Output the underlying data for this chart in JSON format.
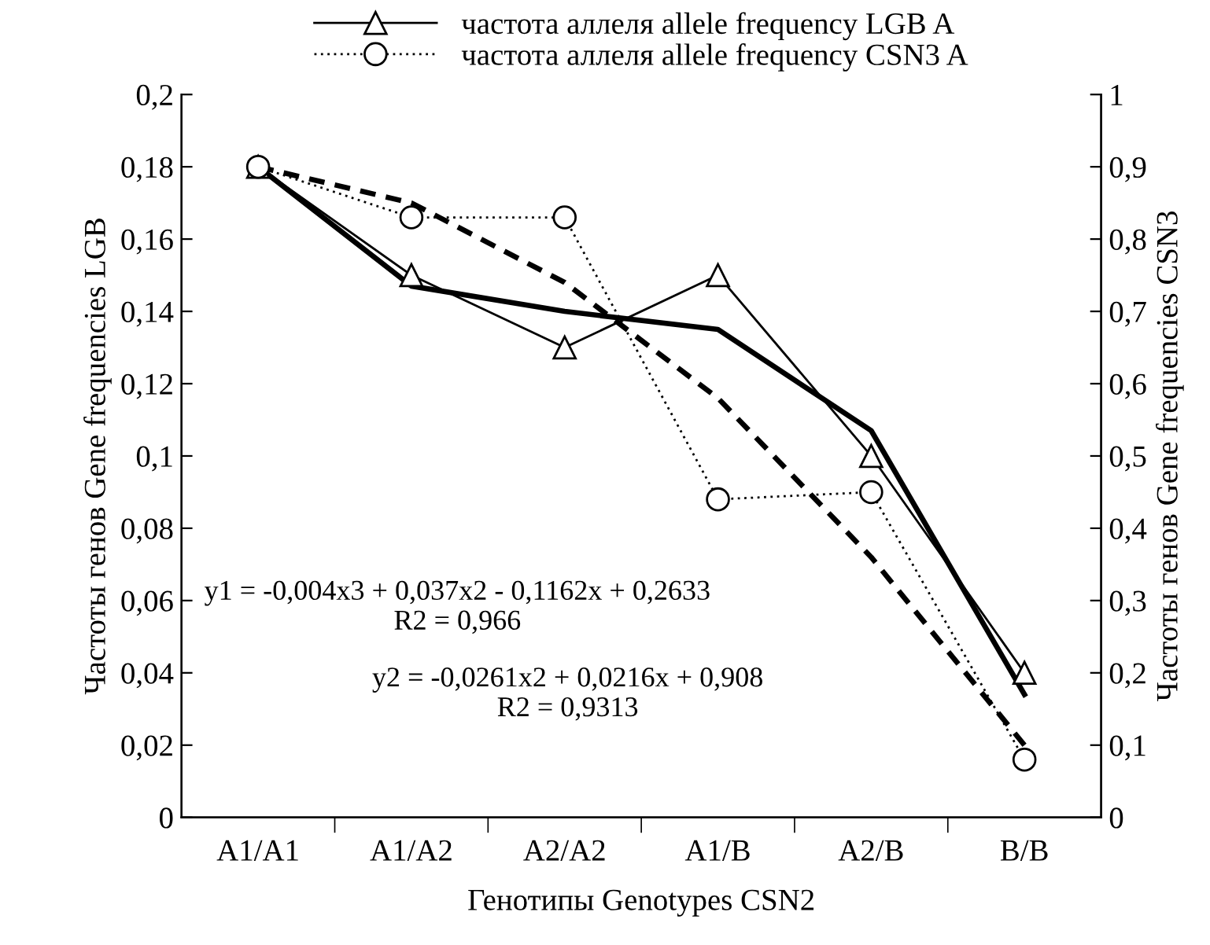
{
  "chart_data": {
    "type": "line",
    "xlabel": "Генотипы Genotypes CSN2",
    "ylabel": "Частоты генов Gene frequencies LGB",
    "y2label": "Частоты генов Gene frequencies CSN3",
    "categories": [
      "A1/A1",
      "A1/A2",
      "A2/A2",
      "A1/B",
      "A2/B",
      "B/B"
    ],
    "series": [
      {
        "name": "частота аллеля allele frequency LGB A",
        "color": "#000000",
        "values": [
          0.18,
          0.15,
          0.13,
          0.15,
          0.1,
          0.04
        ],
        "marker": "triangle",
        "line_style": "solid"
      },
      {
        "name": "частота аллеля allele frequency CSN3 A",
        "color": "#000000",
        "values": [
          0.9,
          0.83,
          0.83,
          0.44,
          0.45,
          0.08
        ],
        "axis": "y2",
        "marker": "circle",
        "line_style": "dotted"
      },
      {
        "color": "#000000",
        "values": [
          0.18,
          0.147,
          0.14,
          0.135,
          0.107,
          0.034
        ],
        "marker": "none",
        "line_style": "solid"
      },
      {
        "color": "#000000",
        "values": [
          0.9,
          0.85,
          0.74,
          0.58,
          0.36,
          0.1
        ],
        "axis": "y2",
        "marker": "none",
        "line_style": "dashed"
      }
    ],
    "ylim": [
      0,
      0.2
    ],
    "yticks": [
      0,
      {
        "value": 0.02,
        "label": "0,02"
      },
      {
        "value": 0.04,
        "label": "0,04"
      },
      {
        "value": 0.06,
        "label": "0,06"
      },
      {
        "value": 0.08,
        "label": "0,08"
      },
      {
        "value": 0.1,
        "label": "0,1"
      },
      {
        "value": 0.12,
        "label": "0,12"
      },
      {
        "value": 0.14,
        "label": "0,14"
      },
      {
        "value": 0.16,
        "label": "0,16"
      },
      {
        "value": 0.18,
        "label": "0,18"
      },
      {
        "value": 0.2,
        "label": "0,2"
      }
    ],
    "y2lim": [
      0,
      1
    ],
    "y2ticks": [
      0,
      {
        "value": 0.1,
        "label": "0,1"
      },
      {
        "value": 0.2,
        "label": "0,2"
      },
      {
        "value": 0.3,
        "label": "0,3"
      },
      {
        "value": 0.4,
        "label": "0,4"
      },
      {
        "value": 0.5,
        "label": "0,5"
      },
      {
        "value": 0.6,
        "label": "0,6"
      },
      {
        "value": 0.7,
        "label": "0,7"
      },
      {
        "value": 0.8,
        "label": "0,8"
      },
      {
        "value": 0.9,
        "label": "0,9"
      },
      1
    ],
    "annotations": [
      "y1 = -0,004x3 + 0,037x2 - 0,1162x + 0,2633\nR2 = 0,966",
      "y2 = -0,0261x2 + 0,0216x + 0,908\nR2 = 0,9313"
    ],
    "grid": false,
    "legend": "top"
  }
}
